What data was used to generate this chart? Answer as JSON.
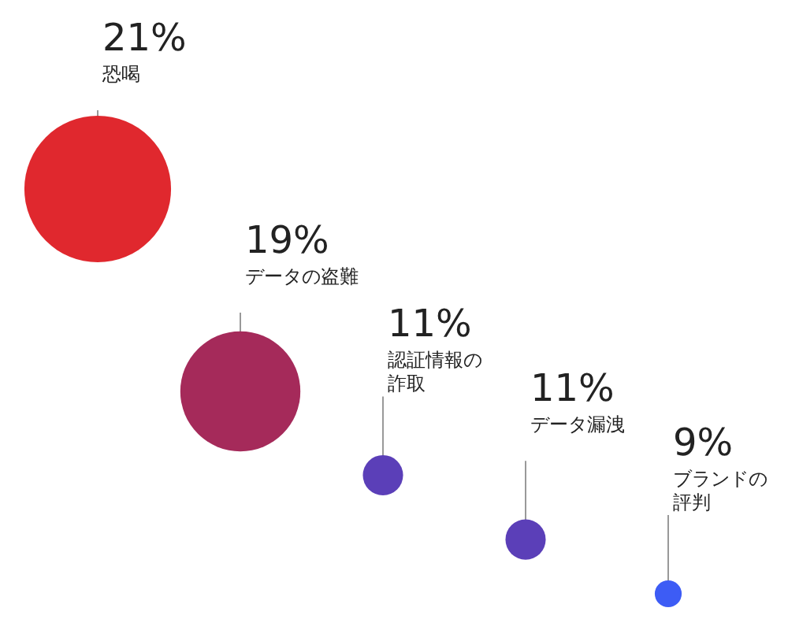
{
  "chart_data": {
    "type": "other",
    "categories": [
      "恐喝",
      "データの盗難",
      "認証情報の詐取",
      "データ漏洩",
      "ブランドの評判"
    ],
    "values": [
      21,
      19,
      11,
      11,
      9
    ],
    "value_labels": [
      "21%",
      "19%",
      "11%",
      "11%",
      "9%"
    ],
    "colors": [
      "#e0282e",
      "#a52a5a",
      "#5b3fb8",
      "#5b3fb8",
      "#3d5cf5"
    ]
  }
}
